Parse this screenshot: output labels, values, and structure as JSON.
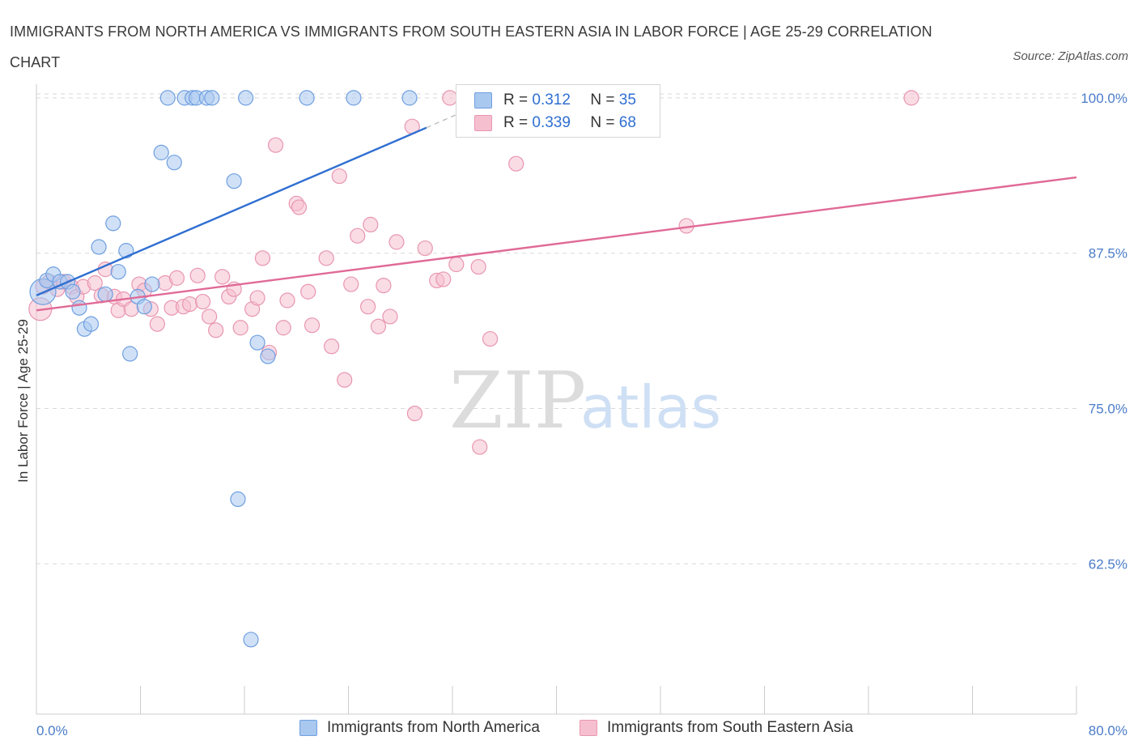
{
  "header": {
    "title": "IMMIGRANTS FROM NORTH AMERICA VS IMMIGRANTS FROM SOUTH EASTERN ASIA IN LABOR FORCE | AGE 25-29 CORRELATION CHART",
    "source": "Source: ZipAtlas.com"
  },
  "watermark": {
    "zip": "ZIP",
    "atlas": "atlas"
  },
  "legend": {
    "series1": {
      "r_label": "R = ",
      "r_value": "0.312",
      "n_label": "N = ",
      "n_value": "35"
    },
    "series2": {
      "r_label": "R = ",
      "r_value": "0.339",
      "n_label": "N = ",
      "n_value": "68"
    }
  },
  "colors": {
    "blue_fill": "#a9c8f0",
    "blue_stroke": "#6f9fe0",
    "blue_line": "#2f6fd1",
    "pink_fill": "#f6bfd0",
    "pink_stroke": "#e896b1",
    "pink_line": "#e06a96",
    "tick_text": "#4a7cc9",
    "grid": "#d9d9d9"
  },
  "chart_data": {
    "type": "scatter",
    "title": "IMMIGRANTS FROM NORTH AMERICA VS IMMIGRANTS FROM SOUTH EASTERN ASIA IN LABOR FORCE | AGE 25-29 CORRELATION CHART",
    "xlabel": "",
    "ylabel": "In Labor Force | Age 25-29",
    "xlim": [
      0,
      80
    ],
    "ylim": [
      50.4,
      101.1
    ],
    "x_tick_labels": [
      {
        "value": 0,
        "label": "0.0%"
      },
      {
        "value": 80,
        "label": "80.0%"
      }
    ],
    "y_tick_labels": [
      {
        "value": 100,
        "label": "100.0%"
      },
      {
        "value": 87.5,
        "label": "87.5%"
      },
      {
        "value": 75,
        "label": "75.0%"
      },
      {
        "value": 62.5,
        "label": "62.5%"
      }
    ],
    "grid": true,
    "legend_position": "top-center",
    "series": [
      {
        "name": "Immigrants from North America",
        "r": 0.312,
        "n": 35,
        "trend": {
          "x": [
            0,
            30
          ],
          "y": [
            84.1,
            97.6
          ]
        },
        "trend_dashed": {
          "x": [
            30,
            33.5
          ],
          "y": [
            97.6,
            99.2
          ]
        },
        "points": [
          {
            "x": 0.5,
            "y": 84.4,
            "s": 16
          },
          {
            "x": 0.8,
            "y": 85.3,
            "s": 9
          },
          {
            "x": 1.3,
            "y": 85.8,
            "s": 9
          },
          {
            "x": 1.8,
            "y": 85.2,
            "s": 9
          },
          {
            "x": 2.4,
            "y": 85.2,
            "s": 9
          },
          {
            "x": 2.8,
            "y": 84.4,
            "s": 9
          },
          {
            "x": 3.3,
            "y": 83.1,
            "s": 9
          },
          {
            "x": 3.7,
            "y": 81.4,
            "s": 9
          },
          {
            "x": 4.2,
            "y": 81.8,
            "s": 9
          },
          {
            "x": 4.8,
            "y": 88.0,
            "s": 9
          },
          {
            "x": 5.3,
            "y": 84.2,
            "s": 9
          },
          {
            "x": 5.9,
            "y": 89.9,
            "s": 9
          },
          {
            "x": 6.3,
            "y": 86.0,
            "s": 9
          },
          {
            "x": 6.9,
            "y": 87.7,
            "s": 9
          },
          {
            "x": 7.2,
            "y": 79.4,
            "s": 9
          },
          {
            "x": 7.8,
            "y": 84.0,
            "s": 9
          },
          {
            "x": 8.3,
            "y": 83.2,
            "s": 9
          },
          {
            "x": 8.9,
            "y": 85.0,
            "s": 9
          },
          {
            "x": 9.6,
            "y": 95.6,
            "s": 9
          },
          {
            "x": 10.1,
            "y": 100.0,
            "s": 9
          },
          {
            "x": 10.6,
            "y": 94.8,
            "s": 9
          },
          {
            "x": 11.4,
            "y": 100.0,
            "s": 9
          },
          {
            "x": 12.0,
            "y": 100.0,
            "s": 9
          },
          {
            "x": 12.3,
            "y": 100.0,
            "s": 9
          },
          {
            "x": 13.1,
            "y": 100.0,
            "s": 9
          },
          {
            "x": 13.5,
            "y": 100.0,
            "s": 9
          },
          {
            "x": 15.2,
            "y": 93.3,
            "s": 9
          },
          {
            "x": 15.5,
            "y": 67.7,
            "s": 9
          },
          {
            "x": 16.1,
            "y": 100.0,
            "s": 9
          },
          {
            "x": 16.5,
            "y": 56.4,
            "s": 9
          },
          {
            "x": 17.0,
            "y": 80.3,
            "s": 9
          },
          {
            "x": 17.8,
            "y": 79.2,
            "s": 9
          },
          {
            "x": 20.8,
            "y": 100.0,
            "s": 9
          },
          {
            "x": 24.4,
            "y": 100.0,
            "s": 9
          },
          {
            "x": 28.7,
            "y": 100.0,
            "s": 9
          }
        ]
      },
      {
        "name": "Immigrants from South Eastern Asia",
        "r": 0.339,
        "n": 68,
        "trend": {
          "x": [
            0,
            80
          ],
          "y": [
            82.9,
            93.6
          ]
        },
        "points": [
          {
            "x": 0.3,
            "y": 83.0,
            "s": 14
          },
          {
            "x": 0.5,
            "y": 84.8,
            "s": 9
          },
          {
            "x": 1.0,
            "y": 85.2,
            "s": 9
          },
          {
            "x": 1.6,
            "y": 84.6,
            "s": 9
          },
          {
            "x": 2.1,
            "y": 85.2,
            "s": 9
          },
          {
            "x": 2.7,
            "y": 84.8,
            "s": 9
          },
          {
            "x": 3.1,
            "y": 84.0,
            "s": 9
          },
          {
            "x": 3.6,
            "y": 84.8,
            "s": 9
          },
          {
            "x": 4.5,
            "y": 85.1,
            "s": 9
          },
          {
            "x": 5.0,
            "y": 84.1,
            "s": 9
          },
          {
            "x": 5.3,
            "y": 86.2,
            "s": 9
          },
          {
            "x": 6.0,
            "y": 84.0,
            "s": 9
          },
          {
            "x": 6.3,
            "y": 82.9,
            "s": 9
          },
          {
            "x": 6.7,
            "y": 83.8,
            "s": 9
          },
          {
            "x": 7.3,
            "y": 83.0,
            "s": 9
          },
          {
            "x": 7.9,
            "y": 85.0,
            "s": 9
          },
          {
            "x": 8.3,
            "y": 84.5,
            "s": 9
          },
          {
            "x": 8.8,
            "y": 83.0,
            "s": 9
          },
          {
            "x": 9.3,
            "y": 81.8,
            "s": 9
          },
          {
            "x": 9.9,
            "y": 85.1,
            "s": 9
          },
          {
            "x": 10.4,
            "y": 83.1,
            "s": 9
          },
          {
            "x": 10.8,
            "y": 85.5,
            "s": 9
          },
          {
            "x": 11.3,
            "y": 83.2,
            "s": 9
          },
          {
            "x": 11.8,
            "y": 83.4,
            "s": 9
          },
          {
            "x": 12.4,
            "y": 85.7,
            "s": 9
          },
          {
            "x": 12.8,
            "y": 83.6,
            "s": 9
          },
          {
            "x": 13.3,
            "y": 82.4,
            "s": 9
          },
          {
            "x": 13.8,
            "y": 81.3,
            "s": 9
          },
          {
            "x": 14.3,
            "y": 85.6,
            "s": 9
          },
          {
            "x": 14.8,
            "y": 84.0,
            "s": 9
          },
          {
            "x": 15.2,
            "y": 84.6,
            "s": 9
          },
          {
            "x": 15.7,
            "y": 81.5,
            "s": 9
          },
          {
            "x": 16.6,
            "y": 83.0,
            "s": 9
          },
          {
            "x": 17.0,
            "y": 83.9,
            "s": 9
          },
          {
            "x": 17.4,
            "y": 87.1,
            "s": 9
          },
          {
            "x": 17.9,
            "y": 79.5,
            "s": 9
          },
          {
            "x": 18.4,
            "y": 96.2,
            "s": 9
          },
          {
            "x": 19.0,
            "y": 81.5,
            "s": 9
          },
          {
            "x": 19.3,
            "y": 83.7,
            "s": 9
          },
          {
            "x": 20.0,
            "y": 91.5,
            "s": 9
          },
          {
            "x": 20.2,
            "y": 91.2,
            "s": 9
          },
          {
            "x": 20.9,
            "y": 84.4,
            "s": 9
          },
          {
            "x": 21.2,
            "y": 81.7,
            "s": 9
          },
          {
            "x": 22.3,
            "y": 87.1,
            "s": 9
          },
          {
            "x": 22.7,
            "y": 80.0,
            "s": 9
          },
          {
            "x": 23.3,
            "y": 93.7,
            "s": 9
          },
          {
            "x": 23.7,
            "y": 77.3,
            "s": 9
          },
          {
            "x": 24.2,
            "y": 85.0,
            "s": 9
          },
          {
            "x": 24.7,
            "y": 88.9,
            "s": 9
          },
          {
            "x": 25.5,
            "y": 83.2,
            "s": 9
          },
          {
            "x": 25.7,
            "y": 89.8,
            "s": 9
          },
          {
            "x": 26.3,
            "y": 81.6,
            "s": 9
          },
          {
            "x": 26.7,
            "y": 84.9,
            "s": 9
          },
          {
            "x": 27.2,
            "y": 82.4,
            "s": 9
          },
          {
            "x": 27.7,
            "y": 88.4,
            "s": 9
          },
          {
            "x": 28.9,
            "y": 97.7,
            "s": 9
          },
          {
            "x": 29.1,
            "y": 74.6,
            "s": 9
          },
          {
            "x": 29.9,
            "y": 87.9,
            "s": 9
          },
          {
            "x": 30.8,
            "y": 85.3,
            "s": 9
          },
          {
            "x": 31.3,
            "y": 85.4,
            "s": 9
          },
          {
            "x": 31.8,
            "y": 100.0,
            "s": 9
          },
          {
            "x": 32.3,
            "y": 86.6,
            "s": 9
          },
          {
            "x": 34.0,
            "y": 86.4,
            "s": 9
          },
          {
            "x": 34.1,
            "y": 71.9,
            "s": 9
          },
          {
            "x": 34.9,
            "y": 80.6,
            "s": 9
          },
          {
            "x": 36.9,
            "y": 94.7,
            "s": 9
          },
          {
            "x": 50.0,
            "y": 89.7,
            "s": 9
          },
          {
            "x": 67.3,
            "y": 100.0,
            "s": 9
          }
        ]
      }
    ]
  },
  "bottom_legend": {
    "item1": "Immigrants from North America",
    "item2": "Immigrants from South Eastern Asia"
  }
}
